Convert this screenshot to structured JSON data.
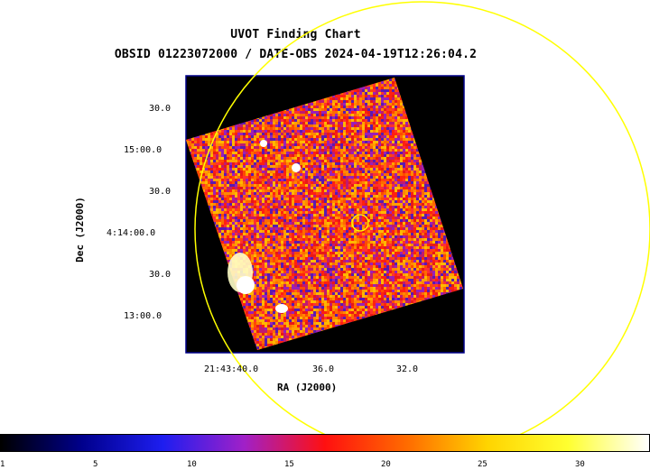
{
  "header": {
    "title": "UVOT Finding Chart",
    "subtitle": "OBSID 01223072000 / DATE-OBS 2024-04-19T12:26:04.2"
  },
  "axes": {
    "ra_label": "RA (J2000)",
    "dec_label": "Dec (J2000)",
    "ra_ticks": [
      "21:43:40.0",
      "36.0",
      "32.0"
    ],
    "dec_ticks": [
      "30.0",
      "15:00.0",
      "30.0",
      "4:14:00.0",
      "30.0",
      "13:00.0"
    ]
  },
  "colorbar": {
    "ticks": [
      "1",
      "5",
      "10",
      "15",
      "20",
      "25",
      "30"
    ],
    "colors": [
      "#000000",
      "#00008c",
      "#1e1ef0",
      "#a020c8",
      "#ff1010",
      "#ff6a00",
      "#ffd400",
      "#ffff30",
      "#ffffff"
    ]
  },
  "overlay": {
    "circle_color": "#ffff00",
    "frame_color": "#00008b"
  }
}
